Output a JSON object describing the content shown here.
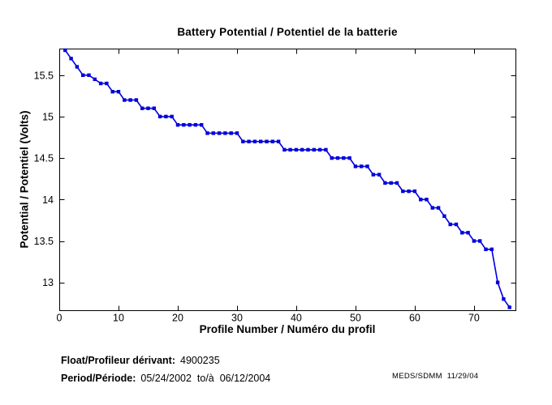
{
  "footer": {
    "float_label": "Float/Profileur dérivant:",
    "float_value": "4900235",
    "period_label": "Period/Période:",
    "period_value": "05/24/2002  to/à  06/12/2004",
    "credit": "MEDS/SDMM  11/29/04"
  },
  "chart_data": {
    "type": "line",
    "title": "Battery Potential / Potentiel de la batterie",
    "xlabel": "Profile Number / Numéro du profil",
    "ylabel": "Potential / Potentiel (Volts)",
    "series_name": "battery-potential",
    "x": [
      1,
      2,
      3,
      4,
      5,
      6,
      7,
      8,
      9,
      10,
      11,
      12,
      13,
      14,
      15,
      16,
      17,
      18,
      19,
      20,
      21,
      22,
      23,
      24,
      25,
      26,
      27,
      28,
      29,
      30,
      31,
      32,
      33,
      34,
      35,
      36,
      37,
      38,
      39,
      40,
      41,
      42,
      43,
      44,
      45,
      46,
      47,
      48,
      49,
      50,
      51,
      52,
      53,
      54,
      55,
      56,
      57,
      58,
      59,
      60,
      61,
      62,
      63,
      64,
      65,
      66,
      67,
      68,
      69,
      70,
      71,
      72,
      73,
      74,
      75,
      76
    ],
    "y": [
      15.8,
      15.7,
      15.6,
      15.5,
      15.5,
      15.45,
      15.4,
      15.4,
      15.3,
      15.3,
      15.2,
      15.2,
      15.2,
      15.1,
      15.1,
      15.1,
      15.0,
      15.0,
      15.0,
      14.9,
      14.9,
      14.9,
      14.9,
      14.9,
      14.8,
      14.8,
      14.8,
      14.8,
      14.8,
      14.8,
      14.7,
      14.7,
      14.7,
      14.7,
      14.7,
      14.7,
      14.7,
      14.6,
      14.6,
      14.6,
      14.6,
      14.6,
      14.6,
      14.6,
      14.6,
      14.5,
      14.5,
      14.5,
      14.5,
      14.4,
      14.4,
      14.4,
      14.3,
      14.3,
      14.2,
      14.2,
      14.2,
      14.1,
      14.1,
      14.1,
      14.0,
      14.0,
      13.9,
      13.9,
      13.8,
      13.7,
      13.7,
      13.6,
      13.6,
      13.5,
      13.5,
      13.4,
      13.4,
      13.0,
      12.8,
      12.7
    ],
    "xlim": [
      0,
      77
    ],
    "ylim": [
      12.665,
      15.82
    ],
    "xticks": [
      0,
      10,
      20,
      30,
      40,
      50,
      60,
      70
    ],
    "yticks": [
      13,
      13.5,
      14,
      14.5,
      15,
      15.5
    ],
    "grid": false,
    "legend": false,
    "box": true,
    "line_color": "#0000dd",
    "axis_color": "#000000",
    "marker": "filled-square"
  }
}
